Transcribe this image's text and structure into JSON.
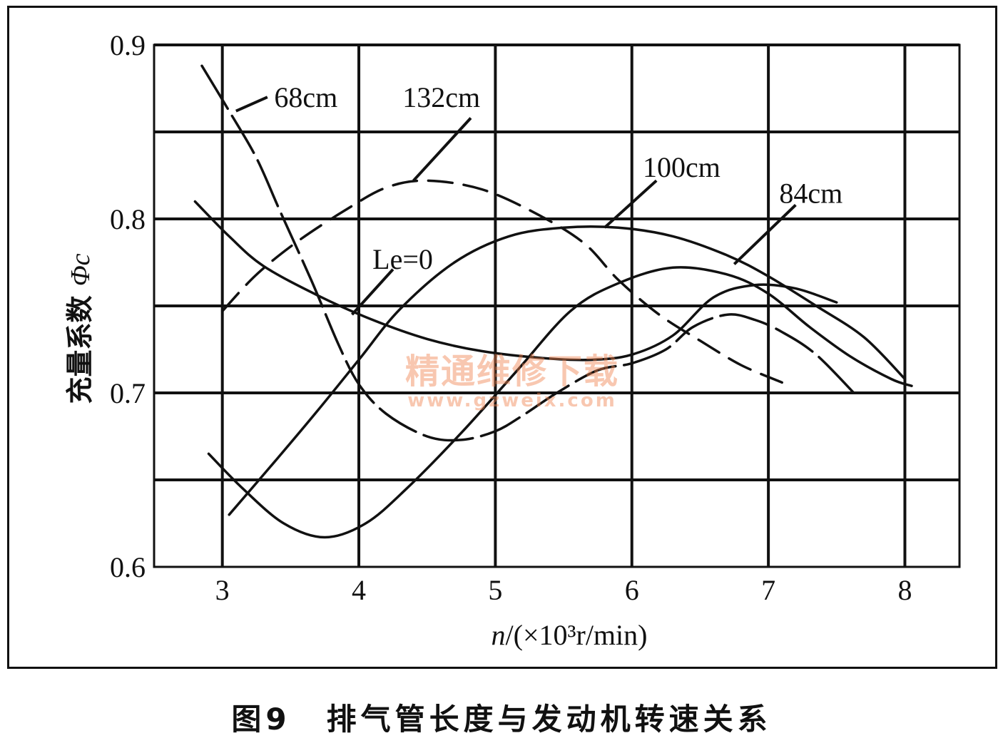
{
  "chart_data": {
    "type": "line",
    "xlabel_var": "n",
    "xlabel_unit": "/(×10³r/min)",
    "ylabel_text": "充量系数",
    "ylabel_symbol": "Φc",
    "x_ticks": [
      "3",
      "4",
      "5",
      "6",
      "7",
      "8"
    ],
    "y_ticks": [
      "0.6",
      "0.7",
      "0.8",
      "0.9"
    ],
    "xlim": [
      2.5,
      8.4
    ],
    "ylim": [
      0.6,
      0.9
    ],
    "grid": true,
    "series": [
      {
        "name": "68cm",
        "style": "mixed",
        "points": [
          [
            2.85,
            0.888
          ],
          [
            3.05,
            0.862
          ],
          [
            3.25,
            0.835
          ],
          [
            3.42,
            0.805
          ],
          [
            3.65,
            0.765
          ],
          [
            3.85,
            0.728
          ],
          [
            4.0,
            0.705
          ],
          [
            4.2,
            0.688
          ],
          [
            4.5,
            0.675
          ],
          [
            4.75,
            0.673
          ],
          [
            5.0,
            0.678
          ],
          [
            5.2,
            0.687
          ],
          [
            5.45,
            0.7
          ],
          [
            5.75,
            0.713
          ],
          [
            6.0,
            0.717
          ],
          [
            6.25,
            0.725
          ],
          [
            6.45,
            0.738
          ],
          [
            6.7,
            0.745
          ],
          [
            6.9,
            0.742
          ],
          [
            7.1,
            0.735
          ],
          [
            7.35,
            0.722
          ],
          [
            7.65,
            0.698
          ]
        ]
      },
      {
        "name": "132cm",
        "style": "dashed",
        "points": [
          [
            3.0,
            0.747
          ],
          [
            3.25,
            0.768
          ],
          [
            3.55,
            0.787
          ],
          [
            3.9,
            0.805
          ],
          [
            4.2,
            0.818
          ],
          [
            4.5,
            0.822
          ],
          [
            4.9,
            0.817
          ],
          [
            5.3,
            0.803
          ],
          [
            5.65,
            0.786
          ],
          [
            5.9,
            0.765
          ],
          [
            6.2,
            0.745
          ],
          [
            6.5,
            0.73
          ],
          [
            6.8,
            0.716
          ],
          [
            7.1,
            0.706
          ]
        ]
      },
      {
        "name": "100cm",
        "style": "solid",
        "points": [
          [
            2.8,
            0.81
          ],
          [
            3.05,
            0.79
          ],
          [
            3.3,
            0.773
          ],
          [
            3.7,
            0.756
          ],
          [
            4.1,
            0.742
          ],
          [
            4.5,
            0.731
          ],
          [
            4.9,
            0.724
          ],
          [
            5.35,
            0.72
          ],
          [
            5.7,
            0.719
          ],
          [
            6.0,
            0.722
          ],
          [
            6.3,
            0.733
          ],
          [
            6.6,
            0.755
          ],
          [
            6.9,
            0.762
          ],
          [
            7.2,
            0.76
          ],
          [
            7.5,
            0.752
          ]
        ]
      },
      {
        "name": "84cm",
        "style": "dash-dot",
        "points": [
          [
            3.05,
            0.63
          ],
          [
            3.4,
            0.662
          ],
          [
            3.7,
            0.69
          ],
          [
            4.0,
            0.719
          ],
          [
            4.3,
            0.748
          ],
          [
            4.7,
            0.775
          ],
          [
            5.1,
            0.79
          ],
          [
            5.5,
            0.795
          ],
          [
            5.9,
            0.795
          ],
          [
            6.3,
            0.79
          ],
          [
            6.7,
            0.779
          ],
          [
            7.0,
            0.767
          ],
          [
            7.35,
            0.75
          ],
          [
            7.7,
            0.732
          ],
          [
            8.0,
            0.708
          ]
        ]
      },
      {
        "name": "Le=0",
        "style": "solid",
        "points": [
          [
            2.9,
            0.665
          ],
          [
            3.15,
            0.645
          ],
          [
            3.45,
            0.625
          ],
          [
            3.75,
            0.617
          ],
          [
            4.05,
            0.625
          ],
          [
            4.35,
            0.645
          ],
          [
            4.75,
            0.677
          ],
          [
            5.15,
            0.712
          ],
          [
            5.55,
            0.747
          ],
          [
            5.9,
            0.763
          ],
          [
            6.3,
            0.772
          ],
          [
            6.7,
            0.768
          ],
          [
            7.0,
            0.757
          ],
          [
            7.3,
            0.738
          ],
          [
            7.6,
            0.721
          ],
          [
            7.9,
            0.708
          ],
          [
            8.05,
            0.704
          ]
        ]
      }
    ],
    "annotations": [
      {
        "text": "68cm",
        "pos": [
          3.38,
          0.87
        ]
      },
      {
        "text": "132cm",
        "pos": [
          4.32,
          0.87
        ]
      },
      {
        "text": "100cm",
        "pos": [
          6.08,
          0.83
        ]
      },
      {
        "text": "84cm",
        "pos": [
          7.08,
          0.815
        ]
      },
      {
        "text": "Le=0",
        "pos": [
          4.1,
          0.777
        ]
      }
    ]
  },
  "caption_number": "图9",
  "caption_text": "排气管长度与发动机转速关系",
  "watermark_cn": "精通维修下载",
  "watermark_url": "www.gzweix.com"
}
